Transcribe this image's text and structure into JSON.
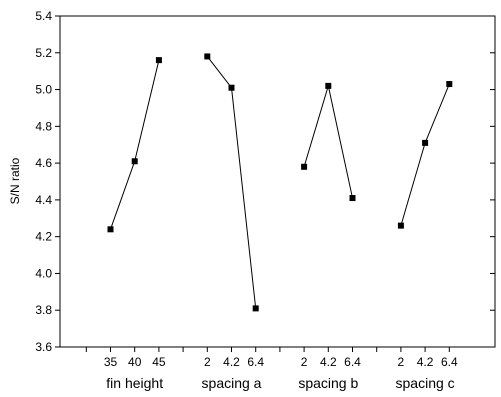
{
  "chart_data": {
    "type": "line",
    "title": "",
    "xlabel": "",
    "ylabel": "S/N ratio",
    "ylim": [
      3.6,
      5.4
    ],
    "yticks": [
      "3.6",
      "3.8",
      "4.0",
      "4.2",
      "4.4",
      "4.6",
      "4.8",
      "5.0",
      "5.2",
      "5.4"
    ],
    "grid": false,
    "legend": "none",
    "marker": "square",
    "line_color": "#000000",
    "groups": [
      {
        "name": "fin height",
        "levels": [
          "35",
          "40",
          "45"
        ],
        "values": [
          4.24,
          4.61,
          5.16
        ]
      },
      {
        "name": "spacing a",
        "levels": [
          "2",
          "4.2",
          "6.4"
        ],
        "values": [
          5.18,
          5.01,
          3.81
        ]
      },
      {
        "name": "spacing b",
        "levels": [
          "2",
          "4.2",
          "6.4"
        ],
        "values": [
          4.58,
          5.02,
          4.41
        ]
      },
      {
        "name": "spacing c",
        "levels": [
          "2",
          "4.2",
          "6.4"
        ],
        "values": [
          4.26,
          4.71,
          5.03
        ]
      }
    ]
  }
}
